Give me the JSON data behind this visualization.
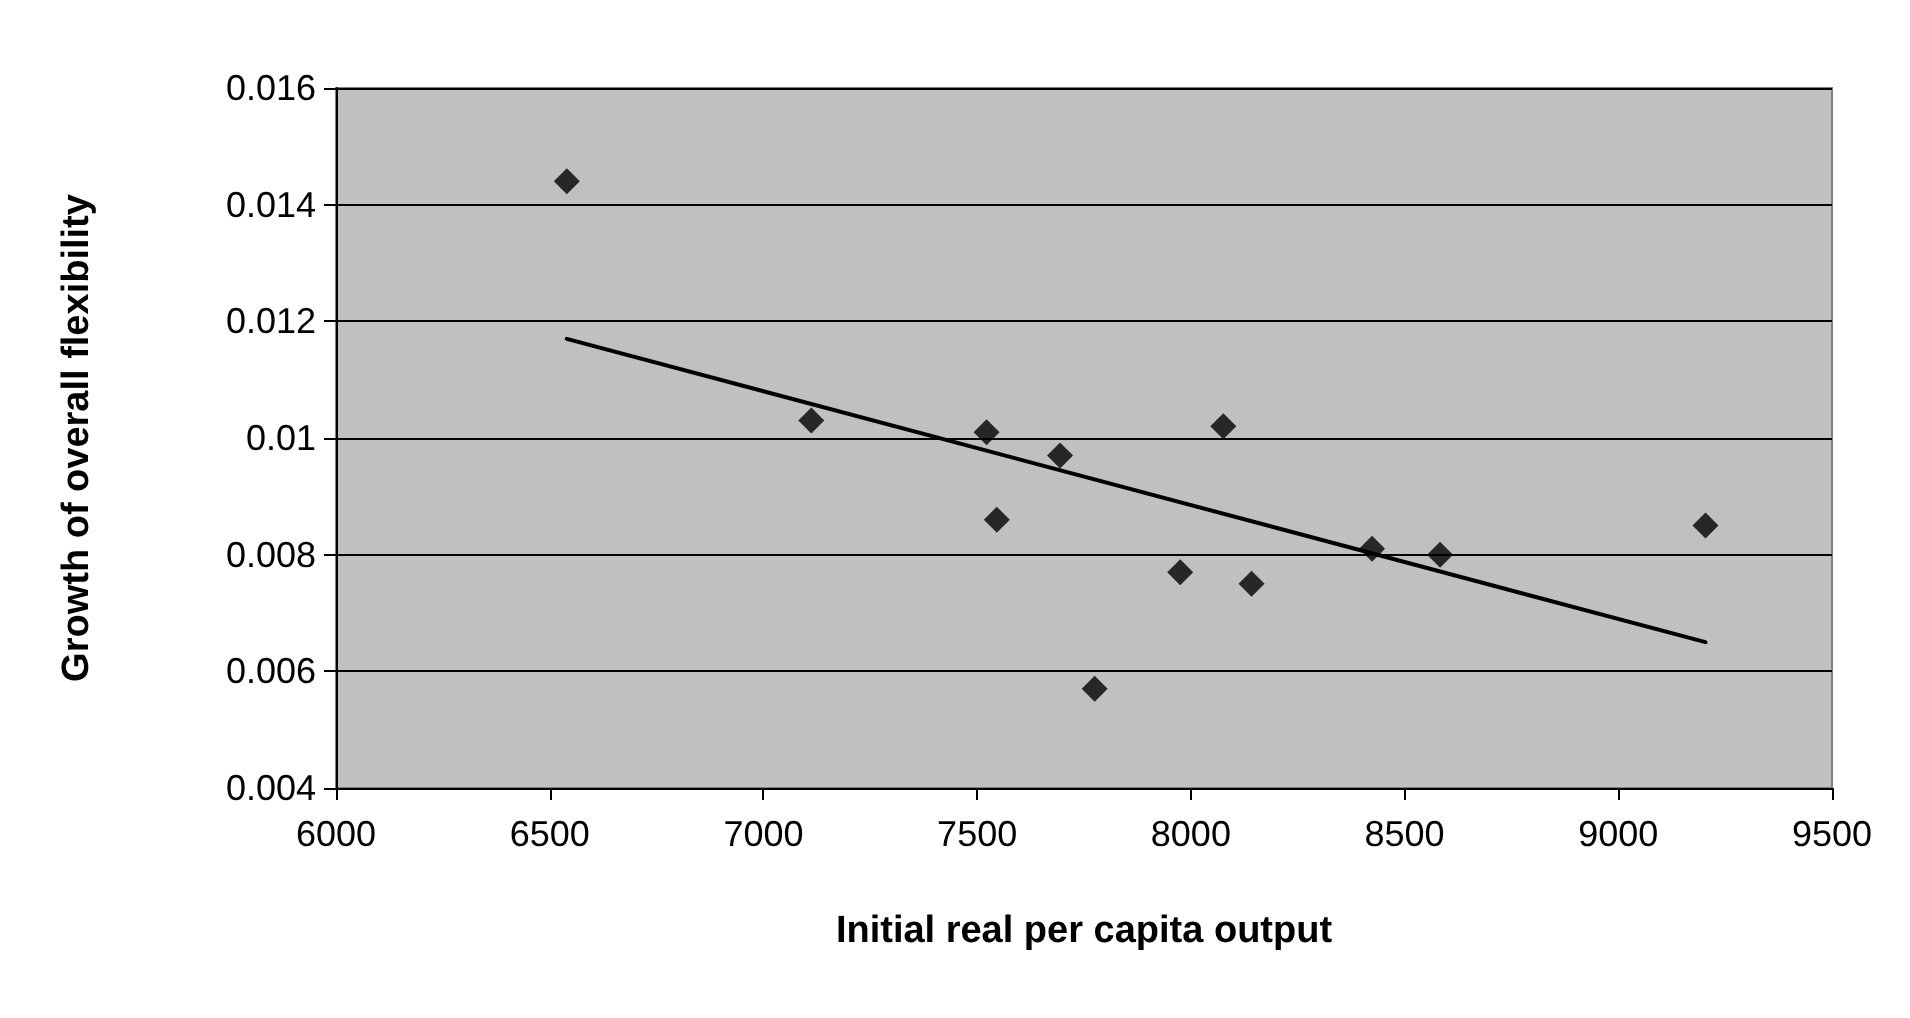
{
  "chart_data": {
    "type": "scatter",
    "xlabel": "Initial real per capita output",
    "ylabel": "Growth of overall flexibility",
    "xlim": [
      6000,
      9500
    ],
    "xticks": [
      6000,
      6500,
      7000,
      7500,
      8000,
      8500,
      9000,
      9500
    ],
    "ylim": [
      0.004,
      0.016
    ],
    "yticks": [
      0.004,
      0.006,
      0.008,
      0.01,
      0.012,
      0.014,
      0.016
    ],
    "grid": "y",
    "marker": "diamond",
    "series": [
      {
        "color": "#000000",
        "x": [
          6540,
          7112,
          7522,
          7694,
          7546,
          7775,
          8076,
          7975,
          8142,
          8424,
          8583,
          9204
        ],
        "values": [
          0.0144,
          0.0103,
          0.0101,
          0.0097,
          0.0086,
          0.0057,
          0.0102,
          0.0077,
          0.0075,
          0.0081,
          0.008,
          0.0085
        ]
      },
      {
        "type": "line",
        "color": "#000000",
        "marker": "none",
        "x": [
          6540,
          9204
        ],
        "values": [
          0.0117,
          0.0065
        ]
      }
    ]
  }
}
